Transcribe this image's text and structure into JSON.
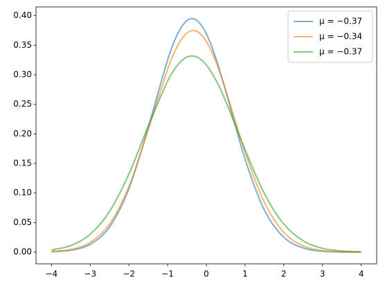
{
  "chart_data": {
    "type": "line",
    "x": [
      -4,
      -3.5,
      -3,
      -2.5,
      -2,
      -1.5,
      -1,
      -0.75,
      -0.5,
      -0.25,
      0,
      0.25,
      0.5,
      1,
      1.5,
      2,
      2.5,
      3,
      3.5,
      4
    ],
    "series": [
      {
        "name": "μ = −0.37",
        "color": "#1f77b4",
        "values": [
          0.0006,
          0.0032,
          0.0133,
          0.0427,
          0.1075,
          0.2113,
          0.3252,
          0.368,
          0.3917,
          0.3922,
          0.3694,
          0.3272,
          0.2726,
          0.1574,
          0.0711,
          0.0252,
          0.007,
          0.0015,
          0.0003,
          0.0
        ]
      },
      {
        "name": "μ = −0.34",
        "color": "#ff7f0e",
        "values": [
          0.001,
          0.0045,
          0.0165,
          0.0477,
          0.111,
          0.2069,
          0.3093,
          0.3482,
          0.3708,
          0.3737,
          0.3563,
          0.3215,
          0.2745,
          0.1696,
          0.084,
          0.0334,
          0.0106,
          0.0027,
          0.0006,
          0.0001
        ]
      },
      {
        "name": "μ = −0.37",
        "color": "#2ca02c",
        "values": [
          0.0035,
          0.0112,
          0.0303,
          0.069,
          0.1323,
          0.2133,
          0.2894,
          0.3158,
          0.3301,
          0.3303,
          0.3166,
          0.2906,
          0.2554,
          0.1733,
          0.0989,
          0.0475,
          0.0192,
          0.0065,
          0.0019,
          0.0004
        ]
      }
    ],
    "xlim": [
      -4.4,
      4.4
    ],
    "ylim": [
      -0.0198,
      0.4148
    ],
    "xticks": [
      {
        "value": -4,
        "label": "−4"
      },
      {
        "value": -3,
        "label": "−3"
      },
      {
        "value": -2,
        "label": "−2"
      },
      {
        "value": -1,
        "label": "−1"
      },
      0,
      1,
      2,
      3,
      4
    ],
    "yticks": [
      {
        "value": 0,
        "label": "0.00"
      },
      {
        "value": 0.05,
        "label": "0.05"
      },
      {
        "value": 0.1,
        "label": "0.10"
      },
      {
        "value": 0.15,
        "label": "0.15"
      },
      {
        "value": 0.2,
        "label": "0.20"
      },
      {
        "value": 0.25,
        "label": "0.25"
      },
      {
        "value": 0.3,
        "label": "0.30"
      },
      {
        "value": 0.35,
        "label": "0.35"
      },
      {
        "value": 0.4,
        "label": "0.40"
      }
    ],
    "legend": "upper right",
    "line_opacity": 0.6,
    "grid": false
  }
}
